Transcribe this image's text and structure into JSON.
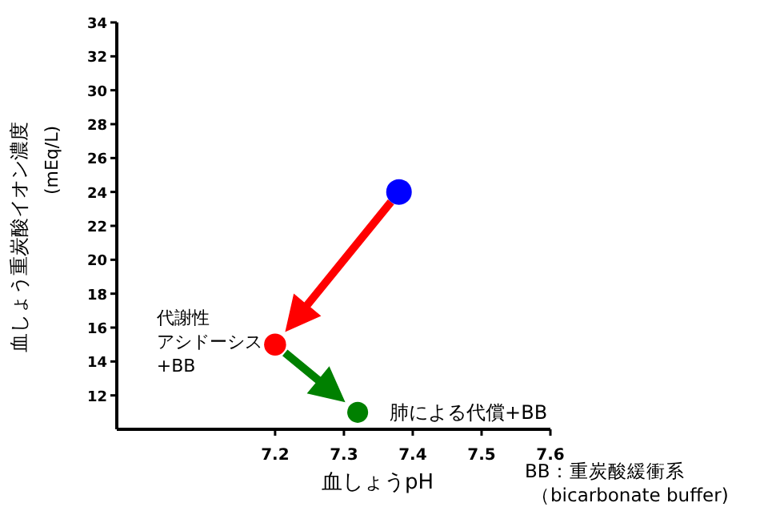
{
  "chart_data": {
    "type": "scatter",
    "xlabel": "血しょうpH",
    "ylabel": "血しょう重炭酸イオン濃度\n(mEq/L)",
    "xlim": [
      6.97,
      7.6
    ],
    "xticks": [
      7.2,
      7.3,
      7.4,
      7.5,
      7.6
    ],
    "ylim": [
      10,
      34
    ],
    "yticks": [
      12,
      14,
      16,
      18,
      20,
      22,
      24,
      26,
      28,
      30,
      32,
      34
    ],
    "marker": "circle",
    "series": [
      {
        "x": [
          7.38,
          7.2,
          7.32
        ],
        "values": [
          24,
          15,
          11
        ],
        "colors": [
          "#0000ff",
          "#ff0000",
          "#008000"
        ],
        "sizes": [
          1,
          0.6,
          0.5
        ]
      }
    ],
    "annotations": [
      "代謝性",
      {
        "text": "アシドーシス",
        "x": 7.2,
        "y": 15
      },
      "+BB",
      {
        "text": "肺による代償+BB",
        "x": 7.32,
        "y": 11
      },
      "BB：重炭酸緩衝系",
      "（bicarbonate buffer)"
    ]
  }
}
